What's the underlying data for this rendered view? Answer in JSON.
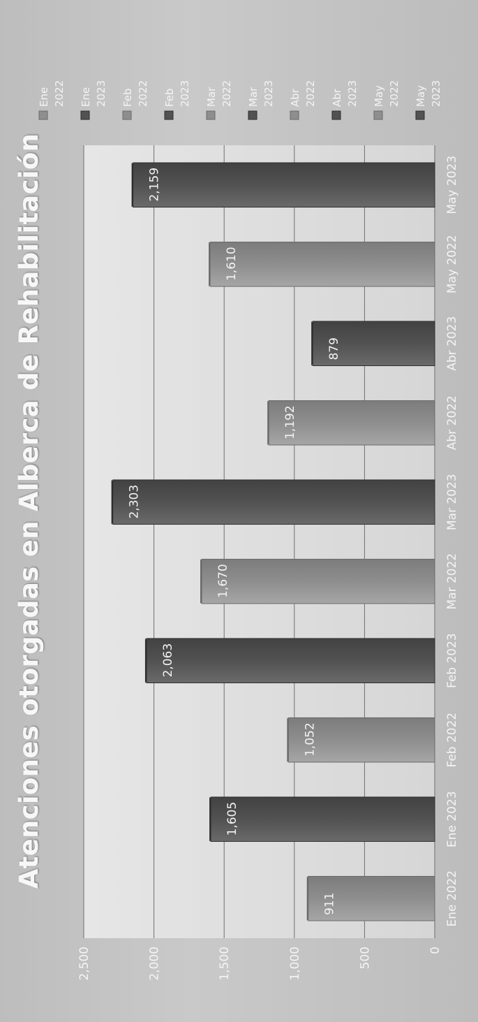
{
  "chart_data": {
    "type": "bar",
    "title": "Atenciones otorgadas en Alberca de Rehabilitación",
    "categories": [
      "Ene 2022",
      "Ene 2023",
      "Feb 2022",
      "Feb 2023",
      "Mar 2022",
      "Mar 2023",
      "Abr 2022",
      "Abr 2023",
      "May 2022",
      "May 2023"
    ],
    "values": [
      911,
      1605,
      1052,
      2063,
      1670,
      2303,
      1192,
      879,
      1610,
      2159
    ],
    "value_labels": [
      "911",
      "1,605",
      "1,052",
      "2,063",
      "1,670",
      "2,303",
      "1,192",
      "879",
      "1,610",
      "2,159"
    ],
    "ylim": [
      0,
      2500
    ],
    "yticks": [
      0,
      500,
      1000,
      1500,
      2000,
      2500
    ],
    "ytick_labels": [
      "0",
      "500",
      "1,000",
      "1,500",
      "2,000",
      "2,500"
    ],
    "grid": true,
    "legend": {
      "placement": "right",
      "entries": [
        {
          "line1": "Ene",
          "line2": "2022"
        },
        {
          "line1": "Ene",
          "line2": "2023"
        },
        {
          "line1": "Feb",
          "line2": "2022"
        },
        {
          "line1": "Feb",
          "line2": "2023"
        },
        {
          "line1": "Mar",
          "line2": "2022"
        },
        {
          "line1": "Mar",
          "line2": "2023"
        },
        {
          "line1": "Abr",
          "line2": "2022"
        },
        {
          "line1": "Abr",
          "line2": "2023"
        },
        {
          "line1": "May",
          "line2": "2022"
        },
        {
          "line1": "May",
          "line2": "2023"
        }
      ]
    },
    "colors": {
      "year_2022": "#8e8e8e",
      "year_2023": "#525252"
    }
  }
}
